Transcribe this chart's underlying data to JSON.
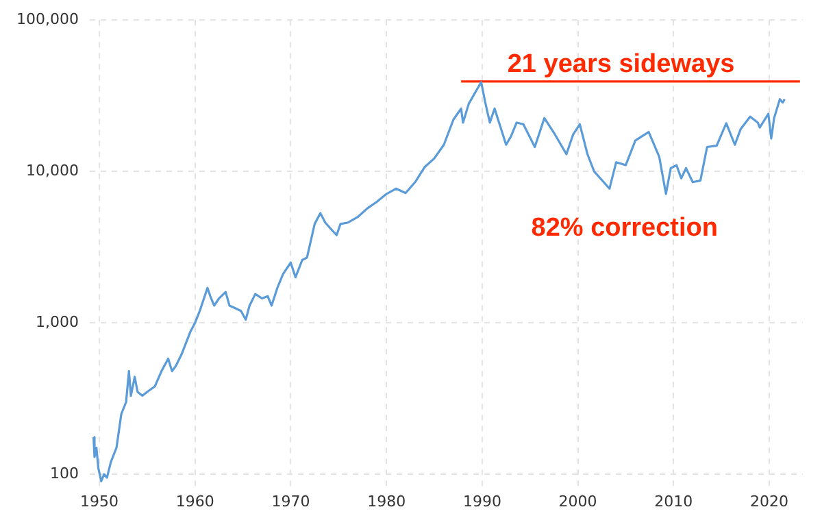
{
  "chart_data": {
    "type": "line",
    "xlim": [
      1949,
      2023.5
    ],
    "xticks": [
      {
        "value": 1950,
        "label": "1950"
      },
      {
        "value": 1960,
        "label": "1960"
      },
      {
        "value": 1970,
        "label": "1970"
      },
      {
        "value": 1980,
        "label": "1980"
      },
      {
        "value": 1990,
        "label": "1990"
      },
      {
        "value": 2000,
        "label": "2000"
      },
      {
        "value": 2010,
        "label": "2010"
      },
      {
        "value": 2020,
        "label": "2020"
      }
    ],
    "ylim": [
      80,
      100000
    ],
    "yticks": [
      {
        "value": 100,
        "label": "100"
      },
      {
        "value": 1000,
        "label": "1,000"
      },
      {
        "value": 10000,
        "label": "10,000"
      },
      {
        "value": 100000,
        "label": "100,000"
      }
    ],
    "log": "y",
    "grid": true,
    "legend": false,
    "marker": "none",
    "line_style": "solid",
    "series": [
      {
        "color": "#5a9bd8",
        "x": [
          1949.4,
          1949.5,
          1949.7,
          1949.9,
          1950.2,
          1950.5,
          1950.8,
          1951.2,
          1951.8,
          1952.3,
          1952.8,
          1953.1,
          1953.3,
          1953.7,
          1954.0,
          1954.5,
          1955.0,
          1955.8,
          1956.5,
          1957.2,
          1957.6,
          1958.0,
          1958.6,
          1959.5,
          1960.0,
          1960.5,
          1961.3,
          1961.6,
          1962.0,
          1962.5,
          1963.2,
          1963.6,
          1964.2,
          1964.8,
          1965.3,
          1965.7,
          1966.3,
          1967.0,
          1967.6,
          1968.0,
          1968.6,
          1969.2,
          1970.0,
          1970.5,
          1971.2,
          1971.7,
          1972.5,
          1973.1,
          1973.6,
          1974.3,
          1974.8,
          1975.2,
          1976.0,
          1977.0,
          1978.0,
          1979.0,
          1980.0,
          1981.0,
          1982.0,
          1983.0,
          1984.0,
          1985.0,
          1986.0,
          1987.0,
          1987.8,
          1988.0,
          1988.6,
          1989.9,
          1990.3,
          1990.8,
          1991.3,
          1992.5,
          1993.0,
          1993.6,
          1994.3,
          1995.5,
          1996.5,
          1997.5,
          1998.8,
          1999.5,
          2000.2,
          2001.0,
          2001.7,
          2003.3,
          2004.0,
          2005.0,
          2006.0,
          2007.4,
          2008.5,
          2009.2,
          2009.7,
          2010.3,
          2010.8,
          2011.3,
          2012.0,
          2012.8,
          2013.5,
          2014.5,
          2015.5,
          2016.4,
          2017.0,
          2018.0,
          2018.8,
          2019.0,
          2019.9,
          2020.2,
          2020.5,
          2021.1,
          2021.4,
          2021.6
        ],
        "values": [
          176,
          130,
          150,
          110,
          90,
          100,
          95,
          120,
          150,
          250,
          300,
          480,
          330,
          440,
          350,
          330,
          350,
          380,
          480,
          580,
          480,
          520,
          620,
          870,
          1000,
          1200,
          1700,
          1500,
          1300,
          1450,
          1600,
          1300,
          1250,
          1200,
          1050,
          1300,
          1550,
          1450,
          1500,
          1300,
          1700,
          2100,
          2500,
          2000,
          2600,
          2700,
          4500,
          5300,
          4600,
          4100,
          3800,
          4500,
          4600,
          5000,
          5700,
          6300,
          7100,
          7700,
          7200,
          8500,
          10700,
          12200,
          15000,
          22000,
          26000,
          21000,
          28000,
          38900,
          29000,
          21000,
          26000,
          15000,
          17000,
          21000,
          20500,
          14500,
          22500,
          18000,
          13000,
          17500,
          20500,
          13000,
          10000,
          7700,
          11500,
          11000,
          16000,
          18200,
          12500,
          7100,
          10500,
          11000,
          9000,
          10500,
          8500,
          8700,
          14500,
          14800,
          20800,
          15000,
          19000,
          23000,
          21000,
          19500,
          24000,
          16500,
          22500,
          30000,
          28500,
          30000
        ]
      },
      {
        "color": "#ff2a00",
        "x": [
          1987.8,
          2023.2
        ],
        "values": [
          39300,
          39300
        ]
      }
    ],
    "annotations": [
      "21 years sideways",
      "82% correction"
    ]
  }
}
